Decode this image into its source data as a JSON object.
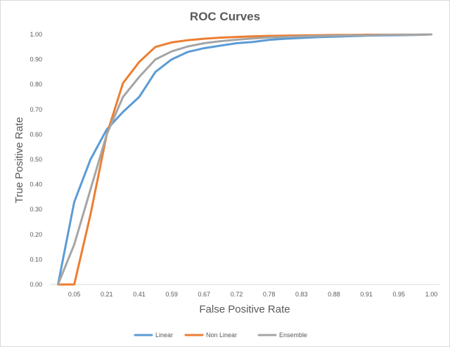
{
  "chart_data": {
    "type": "line",
    "title": "ROC Curves",
    "xlabel": "False Positive Rate",
    "ylabel": "True Positive Rate",
    "x_tick_labels": [
      "",
      "0.05",
      "",
      "0.21",
      "",
      "0.41",
      "",
      "0.59",
      "",
      "0.67",
      "",
      "0.72",
      "",
      "0.78",
      "",
      "0.83",
      "",
      "0.88",
      "",
      "0.91",
      "",
      "0.95",
      "",
      "1.00"
    ],
    "y_ticks": [
      0,
      0.1,
      0.2,
      0.3,
      0.4,
      0.5,
      0.6,
      0.7,
      0.8,
      0.9,
      1.0
    ],
    "y_tick_labels": [
      "0.00",
      "0.10",
      "0.20",
      "0.30",
      "0.40",
      "0.50",
      "0.60",
      "0.70",
      "0.80",
      "0.90",
      "1.00"
    ],
    "ylim": [
      0,
      1
    ],
    "grid": false,
    "legend_position": "bottom",
    "series": [
      {
        "name": "Linear",
        "color": "#5b9bd5",
        "values": [
          0.0,
          0.33,
          0.5,
          0.62,
          0.69,
          0.75,
          0.85,
          0.9,
          0.93,
          0.945,
          0.955,
          0.965,
          0.97,
          0.978,
          0.983,
          0.986,
          0.989,
          0.991,
          0.993,
          0.995,
          0.996,
          0.997,
          0.998,
          1.0
        ]
      },
      {
        "name": "Non Linear",
        "color": "#ed7d31",
        "values": [
          0.0,
          0.0,
          0.28,
          0.6,
          0.805,
          0.89,
          0.95,
          0.968,
          0.977,
          0.983,
          0.987,
          0.99,
          0.992,
          0.994,
          0.995,
          0.996,
          0.997,
          0.998,
          0.998,
          0.999,
          0.999,
          0.999,
          0.999,
          1.0
        ]
      },
      {
        "name": "Ensemble",
        "color": "#a5a5a5",
        "values": [
          0.0,
          0.16,
          0.38,
          0.6,
          0.75,
          0.83,
          0.9,
          0.932,
          0.952,
          0.965,
          0.973,
          0.979,
          0.984,
          0.988,
          0.99,
          0.992,
          0.994,
          0.995,
          0.996,
          0.997,
          0.998,
          0.999,
          0.999,
          1.0
        ]
      }
    ]
  }
}
